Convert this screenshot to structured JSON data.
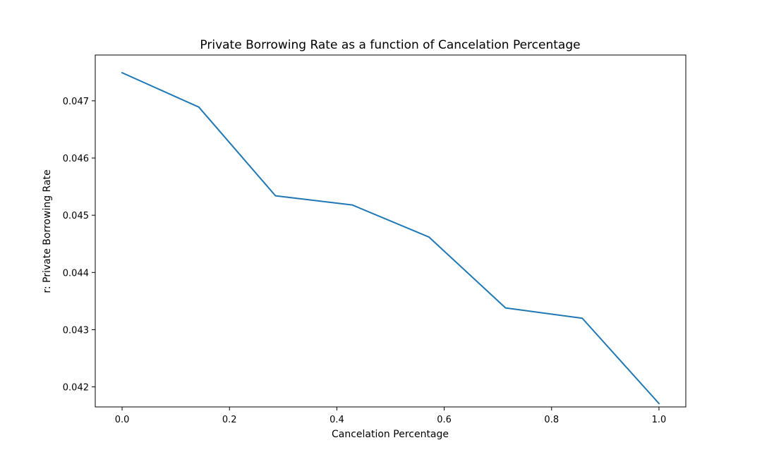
{
  "chart_data": {
    "type": "line",
    "title": "Private Borrowing Rate as a function of Cancelation Percentage",
    "xlabel": "Cancelation Percentage",
    "ylabel": "r: Private Borrowing Rate",
    "xlim": [
      -0.05,
      1.05
    ],
    "ylim": [
      0.04165,
      0.0478
    ],
    "xticks": [
      0.0,
      0.2,
      0.4,
      0.6,
      0.8,
      1.0
    ],
    "xtick_labels": [
      "0.0",
      "0.2",
      "0.4",
      "0.6",
      "0.8",
      "1.0"
    ],
    "yticks": [
      0.042,
      0.043,
      0.044,
      0.045,
      0.046,
      0.047
    ],
    "ytick_labels": [
      "0.042",
      "0.043",
      "0.044",
      "0.045",
      "0.046",
      "0.047"
    ],
    "grid": false,
    "series": [
      {
        "name": "r",
        "color": "#1f77b4",
        "x": [
          0.0,
          0.142857,
          0.285714,
          0.428571,
          0.571429,
          0.714286,
          0.857143,
          1.0
        ],
        "y": [
          0.04749,
          0.04689,
          0.04534,
          0.04518,
          0.04462,
          0.04338,
          0.0432,
          0.04171
        ]
      }
    ]
  }
}
